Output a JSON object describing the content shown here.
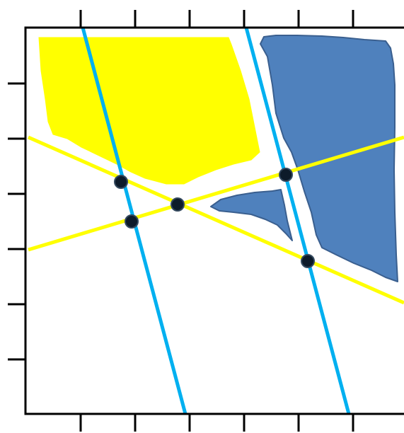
{
  "colors": {
    "background": "#ffffff",
    "frame": "#000000",
    "yellow_region": "#ffff00",
    "blue_region": "#4f81bd",
    "blue_region_edge": "#3a5f8f",
    "cyan_line": "#00b0f0",
    "yellow_line": "#ffff00",
    "intersection_point_fill": "#0d1b2a",
    "intersection_point_stroke": "#34495e"
  },
  "diagram": {
    "regions": [
      {
        "name": "yellow-region",
        "color": "yellow"
      },
      {
        "name": "blue-region-large",
        "color": "blue"
      },
      {
        "name": "blue-region-small",
        "color": "blue"
      }
    ],
    "lines": [
      {
        "name": "cyan-line-left",
        "color": "cyan"
      },
      {
        "name": "cyan-line-right",
        "color": "cyan"
      },
      {
        "name": "yellow-line-descending",
        "color": "yellow"
      },
      {
        "name": "yellow-line-ascending",
        "color": "yellow"
      }
    ],
    "intersection_point_count": 5,
    "tick_marks": {
      "top": 6,
      "bottom": 6,
      "left": 6
    }
  }
}
